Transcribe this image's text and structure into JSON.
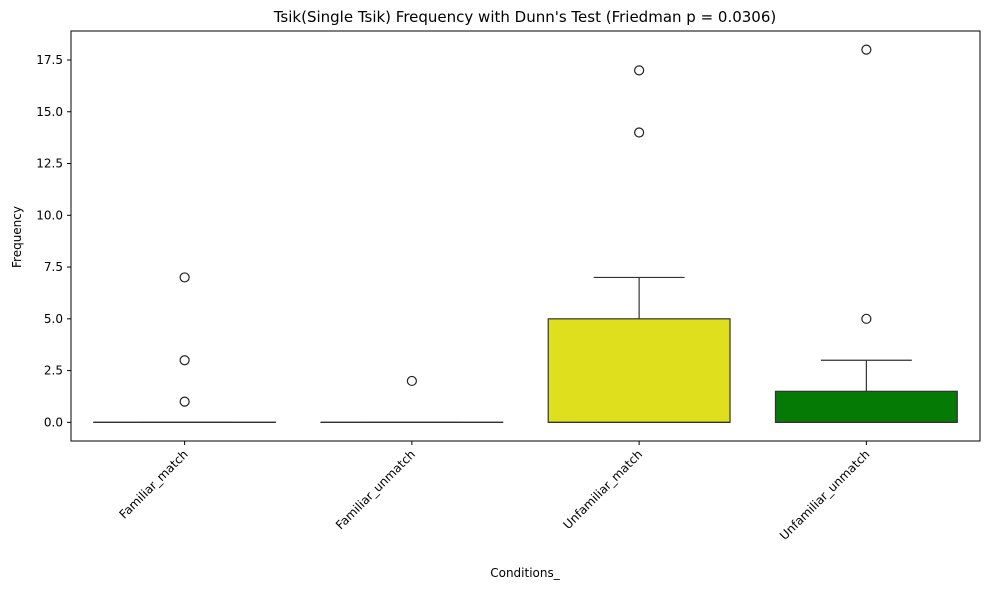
{
  "chart_data": {
    "type": "box",
    "title": "Tsik(Single Tsik) Frequency with Dunn's Test (Friedman p = 0.0306)",
    "xlabel": "Conditions_",
    "ylabel": "Frequency",
    "ylim": [
      -0.9,
      18.9
    ],
    "yticks": [
      0.0,
      2.5,
      5.0,
      7.5,
      10.0,
      12.5,
      15.0,
      17.5
    ],
    "ytick_labels": [
      "0.0",
      "2.5",
      "5.0",
      "7.5",
      "10.0",
      "12.5",
      "15.0",
      "17.5"
    ],
    "categories": [
      "Familiar_match",
      "Familiar_unmatch",
      "Unfamiliar_match",
      "Unfamiliar_unmatch"
    ],
    "boxes": [
      {
        "category": "Familiar_match",
        "whisker_low": 0,
        "q1": 0,
        "median": 0,
        "q3": 0,
        "whisker_high": 0,
        "outliers": [
          7,
          3,
          1
        ],
        "color": "#e8e8e8"
      },
      {
        "category": "Familiar_unmatch",
        "whisker_low": 0,
        "q1": 0,
        "median": 0,
        "q3": 0,
        "whisker_high": 0,
        "outliers": [
          2
        ],
        "color": "#e8e8e8"
      },
      {
        "category": "Unfamiliar_match",
        "whisker_low": 0,
        "q1": 0,
        "median": 0,
        "q3": 5,
        "whisker_high": 7,
        "outliers": [
          17,
          14
        ],
        "color": "#e0df1e"
      },
      {
        "category": "Unfamiliar_unmatch",
        "whisker_low": 0,
        "q1": 0,
        "median": 0,
        "q3": 1.5,
        "whisker_high": 3,
        "outliers": [
          18,
          5
        ],
        "color": "#057a05"
      }
    ],
    "grid": false,
    "tick_rotation_degrees": 45
  }
}
